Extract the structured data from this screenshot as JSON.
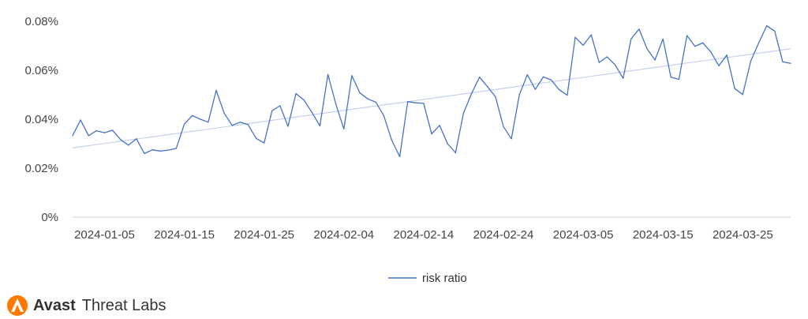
{
  "chart_data": {
    "type": "line",
    "y_unit": "%",
    "ylim": [
      0,
      0.08
    ],
    "y_ticks": [
      0,
      0.02,
      0.04,
      0.06,
      0.08
    ],
    "y_tick_labels": [
      "0%",
      "0.02%",
      "0.04%",
      "0.06%",
      "0.08%"
    ],
    "x_start": "2024-01-01",
    "x_end": "2024-03-31",
    "x_tick_labels": [
      "2024-01-05",
      "2024-01-15",
      "2024-01-25",
      "2024-02-04",
      "2024-02-14",
      "2024-02-24",
      "2024-03-05",
      "2024-03-15",
      "2024-03-25"
    ],
    "grid": false,
    "legend_position": "bottom-center",
    "colors": {
      "series": "#4472c4",
      "trend": "#c5d0ee",
      "axis": "#cccccc",
      "text": "#444444"
    },
    "series": [
      {
        "name": "risk ratio",
        "x": [
          "2024-01-01",
          "2024-01-02",
          "2024-01-03",
          "2024-01-04",
          "2024-01-05",
          "2024-01-06",
          "2024-01-07",
          "2024-01-08",
          "2024-01-09",
          "2024-01-10",
          "2024-01-11",
          "2024-01-12",
          "2024-01-13",
          "2024-01-14",
          "2024-01-15",
          "2024-01-16",
          "2024-01-17",
          "2024-01-18",
          "2024-01-19",
          "2024-01-20",
          "2024-01-21",
          "2024-01-22",
          "2024-01-23",
          "2024-01-24",
          "2024-01-25",
          "2024-01-26",
          "2024-01-27",
          "2024-01-28",
          "2024-01-29",
          "2024-01-30",
          "2024-01-31",
          "2024-02-01",
          "2024-02-02",
          "2024-02-03",
          "2024-02-04",
          "2024-02-05",
          "2024-02-06",
          "2024-02-07",
          "2024-02-08",
          "2024-02-09",
          "2024-02-10",
          "2024-02-11",
          "2024-02-12",
          "2024-02-13",
          "2024-02-14",
          "2024-02-15",
          "2024-02-16",
          "2024-02-17",
          "2024-02-18",
          "2024-02-19",
          "2024-02-20",
          "2024-02-21",
          "2024-02-22",
          "2024-02-23",
          "2024-02-24",
          "2024-02-25",
          "2024-02-26",
          "2024-02-27",
          "2024-02-28",
          "2024-02-29",
          "2024-03-01",
          "2024-03-02",
          "2024-03-03",
          "2024-03-04",
          "2024-03-05",
          "2024-03-06",
          "2024-03-07",
          "2024-03-08",
          "2024-03-09",
          "2024-03-10",
          "2024-03-11",
          "2024-03-12",
          "2024-03-13",
          "2024-03-14",
          "2024-03-15",
          "2024-03-16",
          "2024-03-17",
          "2024-03-18",
          "2024-03-19",
          "2024-03-20",
          "2024-03-21",
          "2024-03-22",
          "2024-03-23",
          "2024-03-24",
          "2024-03-25",
          "2024-03-26",
          "2024-03-27",
          "2024-03-28",
          "2024-03-29",
          "2024-03-30",
          "2024-03-31"
        ],
        "values": [
          0.0333,
          0.0397,
          0.0333,
          0.0353,
          0.0345,
          0.0355,
          0.0317,
          0.0294,
          0.032,
          0.026,
          0.0275,
          0.027,
          0.0274,
          0.0281,
          0.038,
          0.0415,
          0.04,
          0.0388,
          0.0518,
          0.0425,
          0.0375,
          0.0388,
          0.0378,
          0.0322,
          0.0303,
          0.0435,
          0.0455,
          0.0371,
          0.0505,
          0.0478,
          0.0428,
          0.0373,
          0.0583,
          0.0461,
          0.036,
          0.0578,
          0.0508,
          0.0483,
          0.047,
          0.0415,
          0.0315,
          0.0247,
          0.0472,
          0.0467,
          0.0465,
          0.034,
          0.0375,
          0.03,
          0.0263,
          0.0425,
          0.0505,
          0.0572,
          0.0533,
          0.0492,
          0.037,
          0.032,
          0.05,
          0.0582,
          0.0522,
          0.0573,
          0.056,
          0.052,
          0.0498,
          0.0735,
          0.0702,
          0.0745,
          0.0632,
          0.0655,
          0.0622,
          0.0567,
          0.0728,
          0.0768,
          0.0688,
          0.0642,
          0.0728,
          0.0572,
          0.0563,
          0.0742,
          0.0698,
          0.0712,
          0.0675,
          0.0618,
          0.0662,
          0.0525,
          0.0501,
          0.0637,
          0.0712,
          0.0782,
          0.076,
          0.0635,
          0.0628
        ]
      }
    ],
    "trendline": {
      "start_value": 0.0283,
      "end_value": 0.0688
    }
  },
  "branding": {
    "brand": "Avast",
    "product": "Threat Labs"
  }
}
